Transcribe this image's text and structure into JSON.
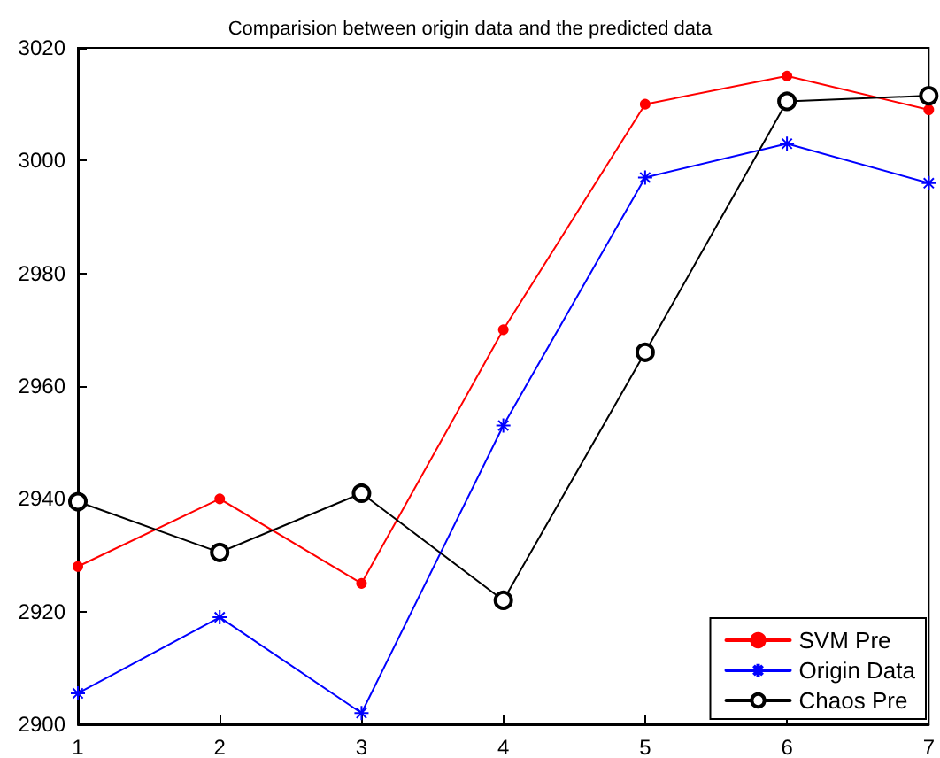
{
  "chart_data": {
    "type": "line",
    "title": "Comparision between origin data and the predicted data",
    "x": [
      1,
      2,
      3,
      4,
      5,
      6,
      7
    ],
    "series": [
      {
        "name": "SVM Pre",
        "color": "#ff0000",
        "marker": "circle",
        "values": [
          2928,
          2940,
          2925,
          2970,
          3010,
          3015,
          3009
        ]
      },
      {
        "name": "Origin Data",
        "color": "#0000ff",
        "marker": "cross",
        "values": [
          2905.5,
          2919,
          2902,
          2953,
          2997,
          3003,
          2996
        ]
      },
      {
        "name": "Chaos Pre",
        "color": "#000000",
        "marker": "circle",
        "values": [
          2939.5,
          2930.5,
          2941,
          2922,
          2966,
          3010.5,
          3011.5
        ]
      }
    ],
    "xlim": [
      1,
      7
    ],
    "xticks": [
      1,
      2,
      3,
      4,
      5,
      6,
      7
    ],
    "ylim": [
      2900,
      3020
    ],
    "yticks": [
      2900,
      2920,
      2940,
      2960,
      2980,
      3000,
      3020
    ],
    "grid": false,
    "legend": "bottom right",
    "line_style": "solid"
  }
}
